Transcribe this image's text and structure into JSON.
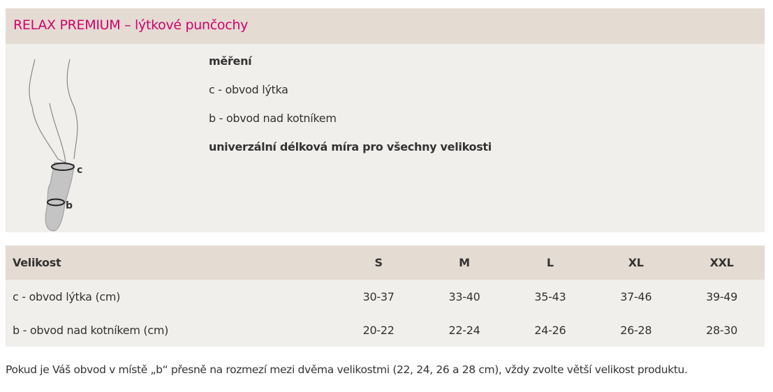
{
  "title": "RELAX PREMIUM – lýtkové punčochy",
  "measure": {
    "heading": "měření",
    "c": "c - obvod lýtka",
    "b": "b - obvod nad kotníkem",
    "length": "univerzální délková míra pro všechny velikosti",
    "label_c": "c",
    "label_b": "b"
  },
  "table": {
    "headers": [
      "Velikost",
      "S",
      "M",
      "L",
      "XL",
      "XXL"
    ],
    "rows": [
      [
        "c - obvod lýtka (cm)",
        "30-37",
        "33-40",
        "35-43",
        "37-46",
        "39-49"
      ],
      [
        "b - obvod nad kotníkem (cm)",
        "20-22",
        "22-24",
        "24-26",
        "26-28",
        "28-30"
      ]
    ]
  },
  "note": "Pokud je Váš obvod v místě „b“ přesně na rozmezí mezi dvěma velikostmi (22, 24, 26 a 28 cm), vždy zvolte větší velikost produktu.",
  "colors": {
    "accent": "#d1006c",
    "header_bg": "#e4dbd3",
    "panel_bg": "#f1efec"
  }
}
